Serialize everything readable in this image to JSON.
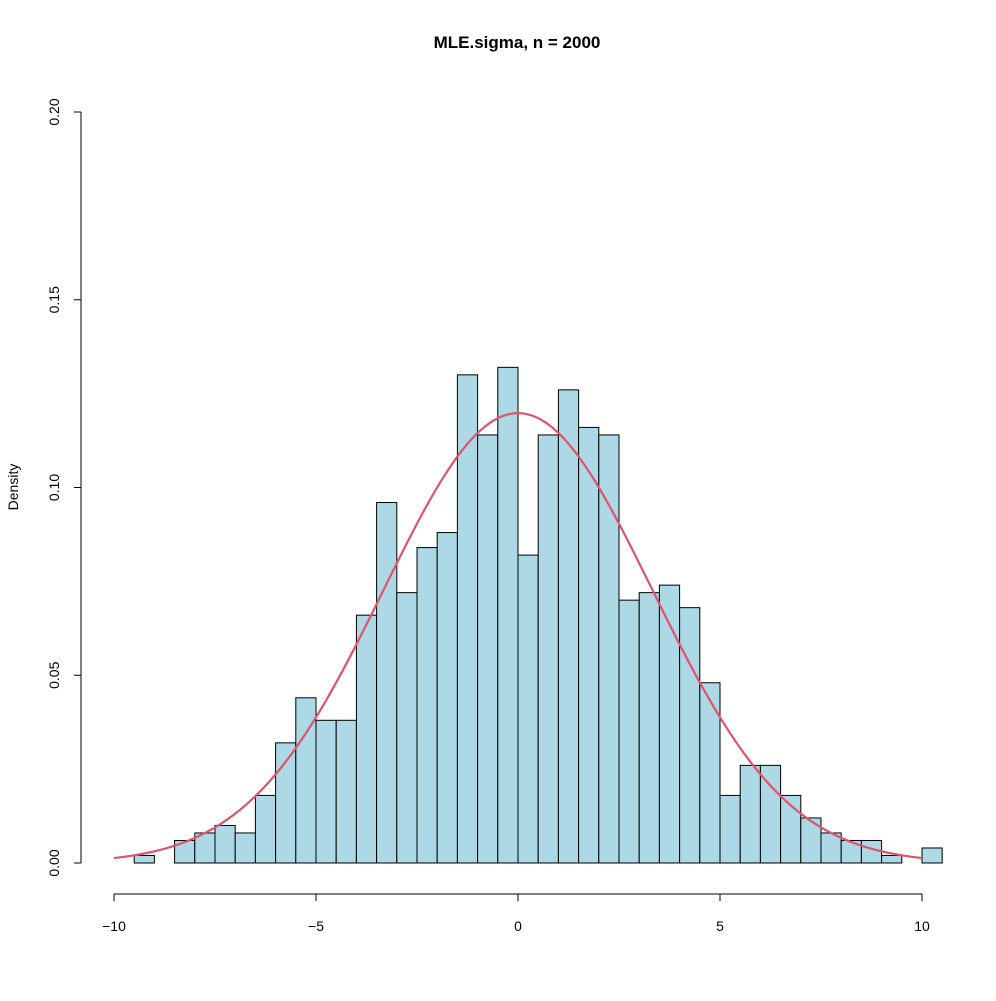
{
  "chart_data": {
    "type": "histogram",
    "title": "MLE.sigma, n = 2000",
    "xlabel": "",
    "ylabel": "Density",
    "xlim": [
      -10,
      10.5
    ],
    "ylim": [
      0,
      0.2
    ],
    "xticks": [
      -10,
      -5,
      0,
      5,
      10
    ],
    "xtick_labels": [
      "−10",
      "−5",
      "0",
      "5",
      "10"
    ],
    "yticks": [
      0.0,
      0.05,
      0.1,
      0.15,
      0.2
    ],
    "ytick_labels": [
      "0.00",
      "0.05",
      "0.10",
      "0.15",
      "0.20"
    ],
    "bin_width": 0.5,
    "bins": [
      {
        "x0": -9.5,
        "x1": -9.0,
        "density": 0.002
      },
      {
        "x0": -9.0,
        "x1": -8.5,
        "density": 0.0
      },
      {
        "x0": -8.5,
        "x1": -8.0,
        "density": 0.006
      },
      {
        "x0": -8.0,
        "x1": -7.5,
        "density": 0.008
      },
      {
        "x0": -7.5,
        "x1": -7.0,
        "density": 0.01
      },
      {
        "x0": -7.0,
        "x1": -6.5,
        "density": 0.008
      },
      {
        "x0": -6.5,
        "x1": -6.0,
        "density": 0.018
      },
      {
        "x0": -6.0,
        "x1": -5.5,
        "density": 0.032
      },
      {
        "x0": -5.5,
        "x1": -5.0,
        "density": 0.044
      },
      {
        "x0": -5.0,
        "x1": -4.5,
        "density": 0.038
      },
      {
        "x0": -4.5,
        "x1": -4.0,
        "density": 0.038
      },
      {
        "x0": -4.0,
        "x1": -3.5,
        "density": 0.066
      },
      {
        "x0": -3.5,
        "x1": -3.0,
        "density": 0.096
      },
      {
        "x0": -3.0,
        "x1": -2.5,
        "density": 0.072
      },
      {
        "x0": -2.5,
        "x1": -2.0,
        "density": 0.084
      },
      {
        "x0": -2.0,
        "x1": -1.5,
        "density": 0.088
      },
      {
        "x0": -1.5,
        "x1": -1.0,
        "density": 0.13
      },
      {
        "x0": -1.0,
        "x1": -0.5,
        "density": 0.114
      },
      {
        "x0": -0.5,
        "x1": 0.0,
        "density": 0.132
      },
      {
        "x0": 0.0,
        "x1": 0.5,
        "density": 0.082
      },
      {
        "x0": 0.5,
        "x1": 1.0,
        "density": 0.114
      },
      {
        "x0": 1.0,
        "x1": 1.5,
        "density": 0.126
      },
      {
        "x0": 1.5,
        "x1": 2.0,
        "density": 0.116
      },
      {
        "x0": 2.0,
        "x1": 2.5,
        "density": 0.114
      },
      {
        "x0": 2.5,
        "x1": 3.0,
        "density": 0.07
      },
      {
        "x0": 3.0,
        "x1": 3.5,
        "density": 0.072
      },
      {
        "x0": 3.5,
        "x1": 4.0,
        "density": 0.074
      },
      {
        "x0": 4.0,
        "x1": 4.5,
        "density": 0.068
      },
      {
        "x0": 4.5,
        "x1": 5.0,
        "density": 0.048
      },
      {
        "x0": 5.0,
        "x1": 5.5,
        "density": 0.018
      },
      {
        "x0": 5.5,
        "x1": 6.0,
        "density": 0.026
      },
      {
        "x0": 6.0,
        "x1": 6.5,
        "density": 0.026
      },
      {
        "x0": 6.5,
        "x1": 7.0,
        "density": 0.018
      },
      {
        "x0": 7.0,
        "x1": 7.5,
        "density": 0.012
      },
      {
        "x0": 7.5,
        "x1": 8.0,
        "density": 0.008
      },
      {
        "x0": 8.0,
        "x1": 8.5,
        "density": 0.006
      },
      {
        "x0": 8.5,
        "x1": 9.0,
        "density": 0.006
      },
      {
        "x0": 9.0,
        "x1": 9.5,
        "density": 0.002
      },
      {
        "x0": 9.5,
        "x1": 10.0,
        "density": 0.0
      },
      {
        "x0": 10.0,
        "x1": 10.5,
        "density": 0.004
      }
    ],
    "curve": {
      "type": "normal-density",
      "mean": 0,
      "sd": 3.33,
      "x_range": [
        -10,
        10
      ]
    },
    "colors": {
      "bar_fill": "#add8e6",
      "bar_stroke": "#000000",
      "curve": "#df536b",
      "axis": "#000000"
    },
    "grid": false,
    "legend": "none"
  }
}
